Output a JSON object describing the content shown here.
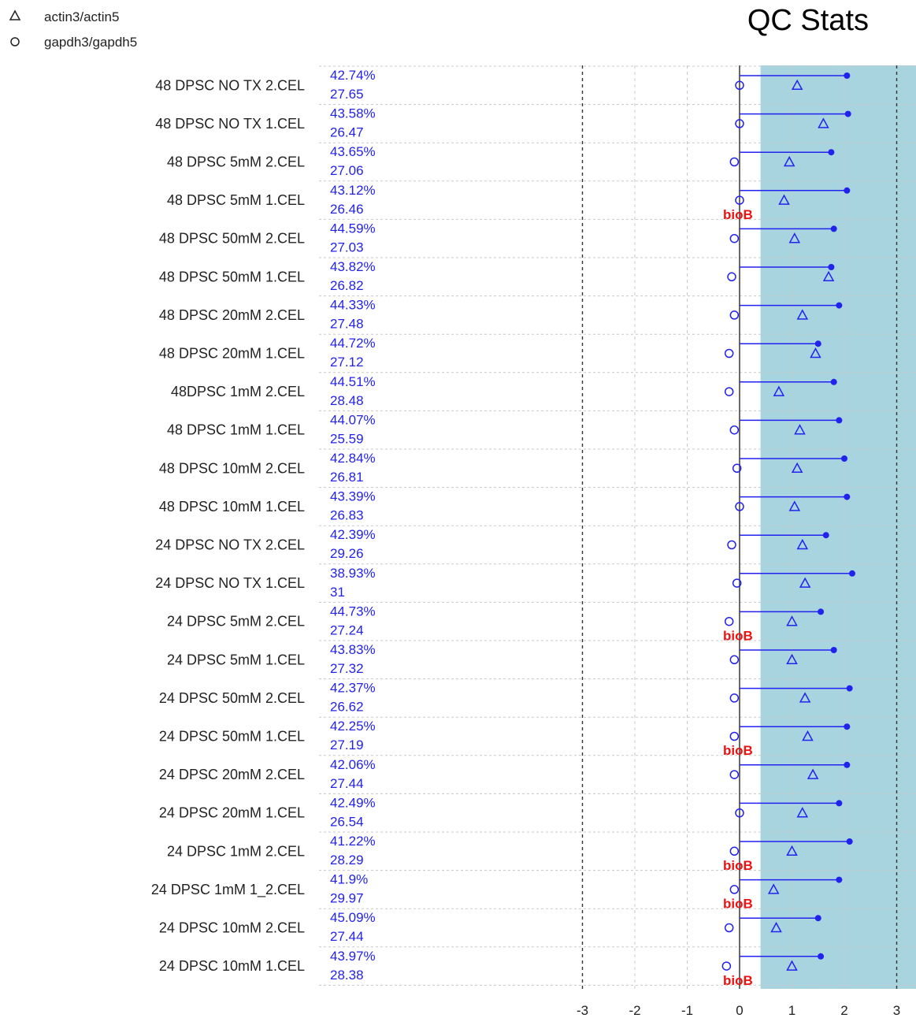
{
  "chart_data": {
    "type": "scatter",
    "title": "QC Stats",
    "legend": {
      "placement": "top-left",
      "entries": [
        {
          "name": "actin3/actin5",
          "marker": "triangle"
        },
        {
          "name": "gapdh3/gapdh5",
          "marker": "circle"
        }
      ]
    },
    "x_ticks": [
      -3,
      -2,
      -1,
      0,
      1,
      2,
      3
    ],
    "xlim": [
      -5,
      3.35
    ],
    "shaded_region": [
      0.4,
      3.35
    ],
    "grid": true,
    "rows": [
      {
        "sample": "48 DPSC NO TX 2.CEL",
        "percent_present": "42.74%",
        "scale_factor": "27.65",
        "scale_factor_log2": 2.05,
        "actin_ratio": 1.1,
        "gapdh_ratio": 0.0,
        "bioB_missing": false
      },
      {
        "sample": "48 DPSC NO TX 1.CEL",
        "percent_present": "43.58%",
        "scale_factor": "26.47",
        "scale_factor_log2": 2.07,
        "actin_ratio": 1.6,
        "gapdh_ratio": 0.0,
        "bioB_missing": false
      },
      {
        "sample": "48 DPSC 5mM 2.CEL",
        "percent_present": "43.65%",
        "scale_factor": "27.06",
        "scale_factor_log2": 1.75,
        "actin_ratio": 0.95,
        "gapdh_ratio": -0.1,
        "bioB_missing": false
      },
      {
        "sample": "48 DPSC 5mM 1.CEL",
        "percent_present": "43.12%",
        "scale_factor": "26.46",
        "scale_factor_log2": 2.05,
        "actin_ratio": 0.85,
        "gapdh_ratio": 0.0,
        "bioB_missing": true
      },
      {
        "sample": "48 DPSC 50mM 2.CEL",
        "percent_present": "44.59%",
        "scale_factor": "27.03",
        "scale_factor_log2": 1.8,
        "actin_ratio": 1.05,
        "gapdh_ratio": -0.1,
        "bioB_missing": false
      },
      {
        "sample": "48 DPSC 50mM 1.CEL",
        "percent_present": "43.82%",
        "scale_factor": "26.82",
        "scale_factor_log2": 1.75,
        "actin_ratio": 1.7,
        "gapdh_ratio": -0.15,
        "bioB_missing": false
      },
      {
        "sample": "48 DPSC 20mM 2.CEL",
        "percent_present": "44.33%",
        "scale_factor": "27.48",
        "scale_factor_log2": 1.9,
        "actin_ratio": 1.2,
        "gapdh_ratio": -0.1,
        "bioB_missing": false
      },
      {
        "sample": "48 DPSC 20mM 1.CEL",
        "percent_present": "44.72%",
        "scale_factor": "27.12",
        "scale_factor_log2": 1.5,
        "actin_ratio": 1.45,
        "gapdh_ratio": -0.2,
        "bioB_missing": false
      },
      {
        "sample": "48DPSC 1mM 2.CEL",
        "percent_present": "44.51%",
        "scale_factor": "28.48",
        "scale_factor_log2": 1.8,
        "actin_ratio": 0.75,
        "gapdh_ratio": -0.2,
        "bioB_missing": false
      },
      {
        "sample": "48 DPSC 1mM 1.CEL",
        "percent_present": "44.07%",
        "scale_factor": "25.59",
        "scale_factor_log2": 1.9,
        "actin_ratio": 1.15,
        "gapdh_ratio": -0.1,
        "bioB_missing": false
      },
      {
        "sample": "48 DPSC 10mM 2.CEL",
        "percent_present": "42.84%",
        "scale_factor": "26.81",
        "scale_factor_log2": 2.0,
        "actin_ratio": 1.1,
        "gapdh_ratio": -0.05,
        "bioB_missing": false
      },
      {
        "sample": "48 DPSC 10mM 1.CEL",
        "percent_present": "43.39%",
        "scale_factor": "26.83",
        "scale_factor_log2": 2.05,
        "actin_ratio": 1.05,
        "gapdh_ratio": 0.0,
        "bioB_missing": false
      },
      {
        "sample": "24 DPSC NO TX 2.CEL",
        "percent_present": "42.39%",
        "scale_factor": "29.26",
        "scale_factor_log2": 1.65,
        "actin_ratio": 1.2,
        "gapdh_ratio": -0.15,
        "bioB_missing": false
      },
      {
        "sample": "24 DPSC NO TX 1.CEL",
        "percent_present": "38.93%",
        "scale_factor": "31",
        "scale_factor_log2": 2.15,
        "actin_ratio": 1.25,
        "gapdh_ratio": -0.05,
        "bioB_missing": false
      },
      {
        "sample": "24 DPSC 5mM 2.CEL",
        "percent_present": "44.73%",
        "scale_factor": "27.24",
        "scale_factor_log2": 1.55,
        "actin_ratio": 1.0,
        "gapdh_ratio": -0.2,
        "bioB_missing": true
      },
      {
        "sample": "24 DPSC 5mM 1.CEL",
        "percent_present": "43.83%",
        "scale_factor": "27.32",
        "scale_factor_log2": 1.8,
        "actin_ratio": 1.0,
        "gapdh_ratio": -0.1,
        "bioB_missing": false
      },
      {
        "sample": "24 DPSC 50mM 2.CEL",
        "percent_present": "42.37%",
        "scale_factor": "26.62",
        "scale_factor_log2": 2.1,
        "actin_ratio": 1.25,
        "gapdh_ratio": -0.1,
        "bioB_missing": false
      },
      {
        "sample": "24 DPSC 50mM 1.CEL",
        "percent_present": "42.25%",
        "scale_factor": "27.19",
        "scale_factor_log2": 2.05,
        "actin_ratio": 1.3,
        "gapdh_ratio": -0.1,
        "bioB_missing": true
      },
      {
        "sample": "24 DPSC 20mM 2.CEL",
        "percent_present": "42.06%",
        "scale_factor": "27.44",
        "scale_factor_log2": 2.05,
        "actin_ratio": 1.4,
        "gapdh_ratio": -0.1,
        "bioB_missing": false
      },
      {
        "sample": "24 DPSC 20mM 1.CEL",
        "percent_present": "42.49%",
        "scale_factor": "26.54",
        "scale_factor_log2": 1.9,
        "actin_ratio": 1.2,
        "gapdh_ratio": 0.0,
        "bioB_missing": false
      },
      {
        "sample": "24 DPSC 1mM 2.CEL",
        "percent_present": "41.22%",
        "scale_factor": "28.29",
        "scale_factor_log2": 2.1,
        "actin_ratio": 1.0,
        "gapdh_ratio": -0.1,
        "bioB_missing": true
      },
      {
        "sample": "24 DPSC 1mM 1_2.CEL",
        "percent_present": "41.9%",
        "scale_factor": "29.97",
        "scale_factor_log2": 1.9,
        "actin_ratio": 0.65,
        "gapdh_ratio": -0.1,
        "bioB_missing": true
      },
      {
        "sample": "24 DPSC 10mM 2.CEL",
        "percent_present": "45.09%",
        "scale_factor": "27.44",
        "scale_factor_log2": 1.5,
        "actin_ratio": 0.7,
        "gapdh_ratio": -0.2,
        "bioB_missing": false
      },
      {
        "sample": "24 DPSC 10mM 1.CEL",
        "percent_present": "43.97%",
        "scale_factor": "28.38",
        "scale_factor_log2": 1.55,
        "actin_ratio": 1.0,
        "gapdh_ratio": -0.25,
        "bioB_missing": true
      }
    ],
    "bioB_label": "bioB"
  },
  "colors": {
    "shaded": "#a8d4e0",
    "series": "#2222ee",
    "bioB": "#ee1111",
    "grid": "#c8c8c8",
    "axis": "#444444"
  }
}
